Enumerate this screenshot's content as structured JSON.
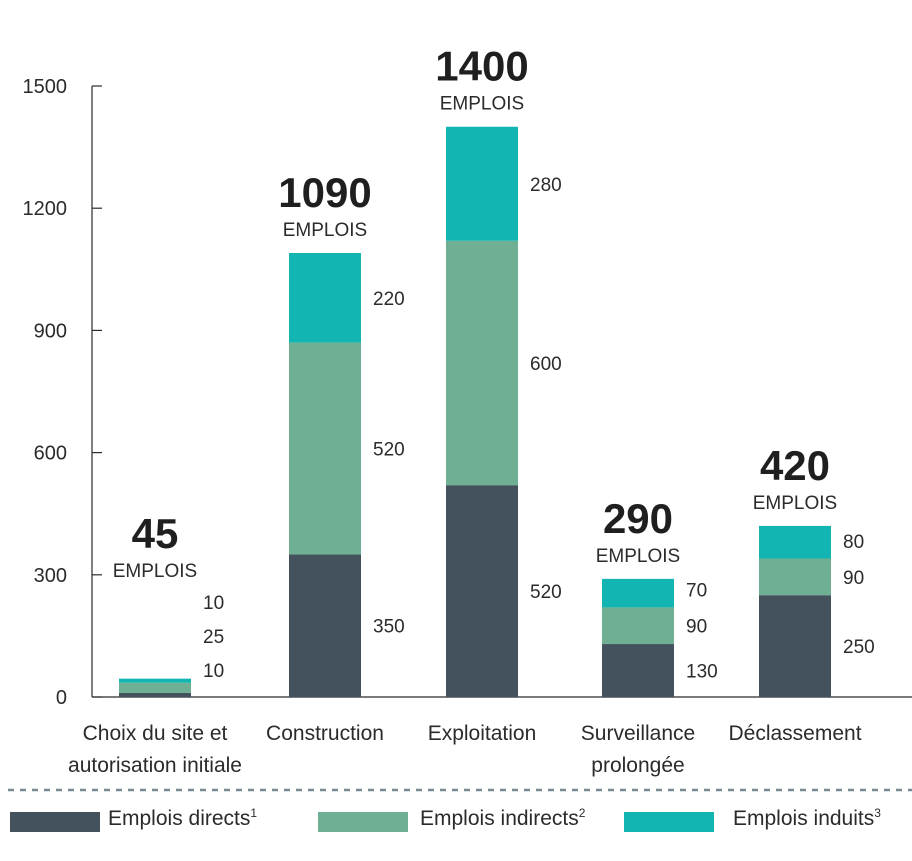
{
  "chart_data": {
    "type": "bar",
    "stacked": true,
    "title": "",
    "xlabel": "",
    "ylabel": "",
    "ylim": [
      0,
      1500
    ],
    "yticks": [
      0,
      300,
      600,
      900,
      1200,
      1500
    ],
    "categories": [
      [
        "Choix du site et",
        "autorisation initiale"
      ],
      [
        "Construction"
      ],
      [
        "Exploitation"
      ],
      [
        "Surveillance",
        "prolongée"
      ],
      [
        "Déclassement"
      ]
    ],
    "series": [
      {
        "name": "Emplois directs",
        "sup": "1",
        "color": "#43525c",
        "values": [
          10,
          350,
          520,
          130,
          250
        ]
      },
      {
        "name": "Emplois indirects",
        "sup": "2",
        "color": "#6faf93",
        "values": [
          25,
          520,
          600,
          90,
          90
        ]
      },
      {
        "name": "Emplois induits",
        "sup": "3",
        "color": "#12b5b2",
        "values": [
          10,
          220,
          280,
          70,
          80
        ]
      }
    ],
    "totals": [
      45,
      1090,
      1400,
      290,
      420
    ],
    "totals_unit": "EMPLOIS",
    "legend_position": "bottom"
  }
}
